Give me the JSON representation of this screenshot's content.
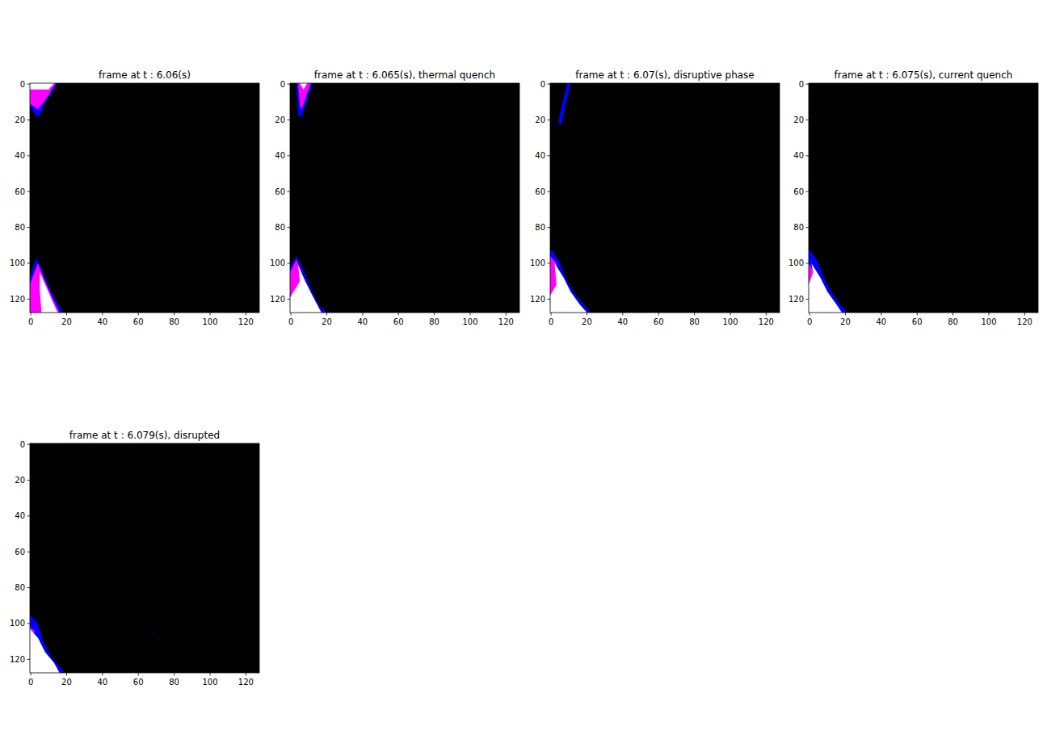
{
  "chart_data": [
    {
      "type": "image",
      "title": "frame at t : 6.06(s)",
      "xlim": [
        -0.5,
        127.5
      ],
      "ylim": [
        127.5,
        -0.5
      ],
      "xticks": [
        0,
        20,
        40,
        60,
        80,
        100,
        120
      ],
      "yticks": [
        0,
        20,
        40,
        60,
        80,
        100,
        120
      ],
      "regions": [
        {
          "color": "#0000ff",
          "points": [
            [
              -0.5,
              -0.5
            ],
            [
              15,
              -0.5
            ],
            [
              8,
              10
            ],
            [
              5,
              18
            ],
            [
              3,
              18
            ],
            [
              -0.5,
              12
            ]
          ]
        },
        {
          "color": "#ff00ff",
          "points": [
            [
              -0.5,
              -0.5
            ],
            [
              14,
              -0.5
            ],
            [
              8,
              9
            ],
            [
              4,
              14
            ],
            [
              -0.5,
              11
            ]
          ]
        },
        {
          "color": "#ffffff",
          "points": [
            [
              -0.5,
              -0.5
            ],
            [
              13,
              -0.5
            ],
            [
              10,
              3
            ],
            [
              -0.5,
              3
            ]
          ]
        },
        {
          "color": "#0000ff",
          "points": [
            [
              3,
              97
            ],
            [
              6,
              103
            ],
            [
              10,
              113
            ],
            [
              14,
              121
            ],
            [
              18,
              127.5
            ],
            [
              -0.5,
              127.5
            ],
            [
              -0.5,
              108
            ],
            [
              2,
              100
            ]
          ]
        },
        {
          "color": "#ff00ff",
          "points": [
            [
              4,
              100
            ],
            [
              8,
              110
            ],
            [
              12,
              119
            ],
            [
              16,
              127.5
            ],
            [
              -0.5,
              127.5
            ],
            [
              -0.5,
              112
            ],
            [
              2,
              105
            ]
          ]
        },
        {
          "color": "#ffffff",
          "points": [
            [
              5,
              105
            ],
            [
              9,
              114
            ],
            [
              12,
              121
            ],
            [
              15,
              127.5
            ],
            [
              6,
              127.5
            ],
            [
              5,
              115
            ]
          ]
        }
      ]
    },
    {
      "type": "image",
      "title": "frame at t : 6.065(s), thermal quench",
      "xlim": [
        -0.5,
        127.5
      ],
      "ylim": [
        127.5,
        -0.5
      ],
      "xticks": [
        0,
        20,
        40,
        60,
        80,
        100,
        120
      ],
      "yticks": [
        0,
        20,
        40,
        60,
        80,
        100,
        120
      ],
      "regions": [
        {
          "color": "#0000ff",
          "points": [
            [
              3,
              -0.5
            ],
            [
              12,
              -0.5
            ],
            [
              6,
              18
            ],
            [
              4,
              18
            ]
          ]
        },
        {
          "color": "#ff00ff",
          "points": [
            [
              4,
              -0.5
            ],
            [
              11,
              -0.5
            ],
            [
              6,
              14
            ],
            [
              5,
              12
            ]
          ]
        },
        {
          "color": "#ffffff",
          "points": [
            [
              5,
              -0.5
            ],
            [
              9,
              -0.5
            ],
            [
              7,
              3
            ]
          ]
        },
        {
          "color": "#0000ff",
          "points": [
            [
              3,
              96
            ],
            [
              7,
              104
            ],
            [
              12,
              116
            ],
            [
              16,
              124
            ],
            [
              20,
              127.5
            ],
            [
              -0.5,
              127.5
            ],
            [
              -0.5,
              102
            ]
          ]
        },
        {
          "color": "#ff00ff",
          "points": [
            [
              3,
              98
            ],
            [
              6,
              105
            ],
            [
              4,
              115
            ],
            [
              -0.5,
              118
            ],
            [
              -0.5,
              105
            ]
          ]
        },
        {
          "color": "#ffffff",
          "points": [
            [
              4,
              101
            ],
            [
              8,
              110
            ],
            [
              12,
              118
            ],
            [
              17,
              127.5
            ],
            [
              -0.5,
              127.5
            ],
            [
              -0.5,
              119
            ],
            [
              5,
              110
            ]
          ]
        }
      ]
    },
    {
      "type": "image",
      "title": "frame at t : 6.07(s), disruptive phase",
      "xlim": [
        -0.5,
        127.5
      ],
      "ylim": [
        127.5,
        -0.5
      ],
      "xticks": [
        0,
        20,
        40,
        60,
        80,
        100,
        120
      ],
      "yticks": [
        0,
        20,
        40,
        60,
        80,
        100,
        120
      ],
      "regions": [
        {
          "color": "#0000ff",
          "points": [
            [
              9,
              -0.5
            ],
            [
              11,
              -0.5
            ],
            [
              8,
              12
            ],
            [
              6,
              22
            ],
            [
              4,
              22
            ],
            [
              6,
              12
            ]
          ]
        },
        {
          "color": "#0000ff",
          "points": [
            [
              1,
              93
            ],
            [
              5,
              100
            ],
            [
              9,
              110
            ],
            [
              14,
              118
            ],
            [
              19,
              124
            ],
            [
              22,
              127.5
            ],
            [
              -0.5,
              127.5
            ],
            [
              -0.5,
              93
            ]
          ]
        },
        {
          "color": "#ff00ff",
          "points": [
            [
              -0.5,
              96
            ],
            [
              3,
              100
            ],
            [
              4,
              110
            ],
            [
              2,
              118
            ],
            [
              -0.5,
              118
            ]
          ]
        },
        {
          "color": "#ffffff",
          "points": [
            [
              2,
              100
            ],
            [
              7,
              108
            ],
            [
              11,
              116
            ],
            [
              16,
              123
            ],
            [
              20,
              127.5
            ],
            [
              -0.5,
              127.5
            ],
            [
              -0.5,
              118
            ],
            [
              3,
              112
            ]
          ]
        }
      ]
    },
    {
      "type": "image",
      "title": "frame at t : 6.075(s), current quench",
      "xlim": [
        -0.5,
        127.5
      ],
      "ylim": [
        127.5,
        -0.5
      ],
      "xticks": [
        0,
        20,
        40,
        60,
        80,
        100,
        120
      ],
      "yticks": [
        0,
        20,
        40,
        60,
        80,
        100,
        120
      ],
      "regions": [
        {
          "color": "#0000ff",
          "points": [
            [
              -0.5,
              92
            ],
            [
              4,
              98
            ],
            [
              8,
              108
            ],
            [
              12,
              116
            ],
            [
              17,
              123
            ],
            [
              21,
              127.5
            ],
            [
              -0.5,
              127.5
            ]
          ]
        },
        {
          "color": "#ff00ff",
          "points": [
            [
              -0.5,
              100
            ],
            [
              2,
              104
            ],
            [
              1,
              112
            ],
            [
              -0.5,
              112
            ]
          ]
        },
        {
          "color": "#ffffff",
          "points": [
            [
              1,
              100
            ],
            [
              6,
              108
            ],
            [
              10,
              116
            ],
            [
              15,
              123
            ],
            [
              18,
              127.5
            ],
            [
              -0.5,
              127.5
            ],
            [
              -0.5,
              112
            ],
            [
              2,
              105
            ]
          ]
        }
      ]
    },
    {
      "type": "image",
      "title": "frame at t : 6.079(s), disrupted",
      "xlim": [
        -0.5,
        127.5
      ],
      "ylim": [
        127.5,
        -0.5
      ],
      "xticks": [
        0,
        20,
        40,
        60,
        80,
        100,
        120
      ],
      "yticks": [
        0,
        20,
        40,
        60,
        80,
        100,
        120
      ],
      "regions": [
        {
          "color": "#0000ff",
          "points": [
            [
              -0.5,
              95
            ],
            [
              4,
              100
            ],
            [
              7,
              110
            ],
            [
              11,
              118
            ],
            [
              16,
              124
            ],
            [
              19,
              127.5
            ],
            [
              -0.5,
              127.5
            ]
          ]
        },
        {
          "color": "#ff00ff",
          "points": [
            [
              -0.5,
              102
            ],
            [
              2,
              104
            ],
            [
              1,
              110
            ],
            [
              -0.5,
              110
            ]
          ]
        },
        {
          "color": "#ffffff",
          "points": [
            [
              -0.5,
              103
            ],
            [
              4,
              108
            ],
            [
              8,
              116
            ],
            [
              13,
              122
            ],
            [
              16,
              127.5
            ],
            [
              -0.5,
              127.5
            ]
          ]
        },
        {
          "color": "#000080",
          "points": [
            [
              70.5,
              108.5
            ],
            [
              71.5,
              108.5
            ],
            [
              71.5,
              109.5
            ],
            [
              70.5,
              109.5
            ]
          ]
        }
      ]
    }
  ]
}
